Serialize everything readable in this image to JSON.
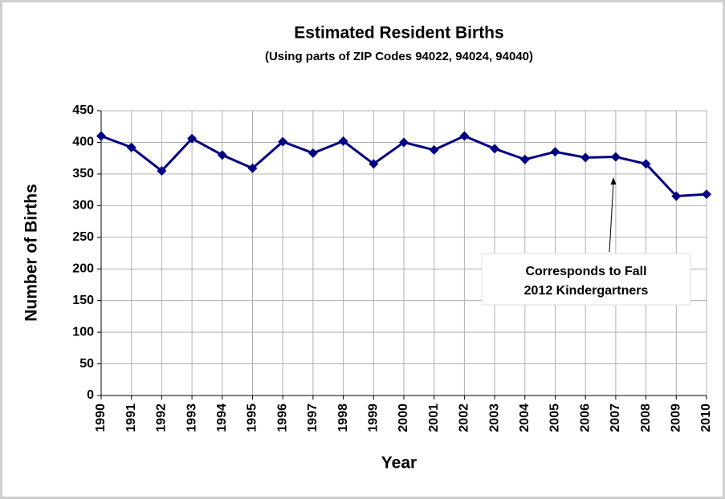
{
  "chart_data": {
    "type": "line",
    "title": "Estimated Resident Births",
    "subtitle": "(Using parts of ZIP Codes 94022, 94024, 94040)",
    "x_label": "Year",
    "y_label": "Number of Births",
    "categories": [
      "1990",
      "1991",
      "1992",
      "1993",
      "1994",
      "1995",
      "1996",
      "1997",
      "1998",
      "1999",
      "2000",
      "2001",
      "2002",
      "2003",
      "2004",
      "2005",
      "2006",
      "2007",
      "2008",
      "2009",
      "2010"
    ],
    "series": [
      {
        "name": "Births",
        "color": "#000080",
        "values": [
          410,
          392,
          355,
          406,
          380,
          359,
          401,
          383,
          402,
          366,
          400,
          388,
          410,
          390,
          373,
          385,
          376,
          377,
          366,
          315,
          318
        ]
      }
    ],
    "ylim": [
      0,
      450
    ],
    "yticks": [
      0,
      50,
      100,
      150,
      200,
      250,
      300,
      350,
      400,
      450
    ],
    "grid": true,
    "annotation": [
      "Corresponds to Fall",
      "2012 Kindergartners"
    ]
  }
}
